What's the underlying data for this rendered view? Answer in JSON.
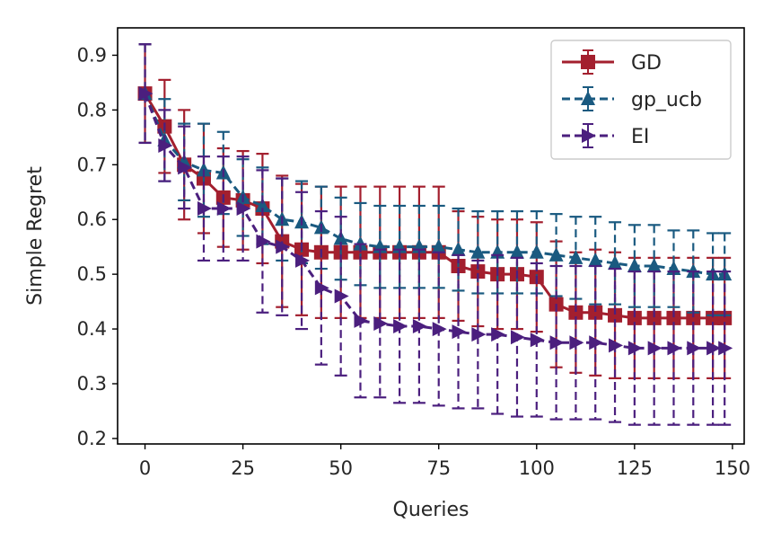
{
  "chart_data": {
    "type": "line",
    "xlabel": "Queries",
    "ylabel": "Simple Regret",
    "xlim": [
      -7,
      153
    ],
    "ylim": [
      0.19,
      0.95
    ],
    "xticks": [
      0,
      25,
      50,
      75,
      100,
      125,
      150
    ],
    "yticks": [
      0.2,
      0.3,
      0.4,
      0.5,
      0.6,
      0.7,
      0.8,
      0.9
    ],
    "grid": false,
    "legend_position": "top-right",
    "series": [
      {
        "name": "GD",
        "color": "#a31f2e",
        "marker": "square",
        "linestyle": "solid",
        "x": [
          0,
          5,
          10,
          15,
          20,
          25,
          30,
          35,
          40,
          45,
          50,
          55,
          60,
          65,
          70,
          75,
          80,
          85,
          90,
          95,
          100,
          105,
          110,
          115,
          120,
          125,
          130,
          135,
          140,
          145,
          148
        ],
        "y": [
          0.83,
          0.77,
          0.7,
          0.675,
          0.64,
          0.635,
          0.62,
          0.56,
          0.545,
          0.54,
          0.54,
          0.54,
          0.54,
          0.54,
          0.54,
          0.54,
          0.515,
          0.505,
          0.5,
          0.5,
          0.495,
          0.445,
          0.43,
          0.43,
          0.425,
          0.42,
          0.42,
          0.42,
          0.42,
          0.42,
          0.42
        ],
        "err": [
          0.09,
          0.085,
          0.1,
          0.1,
          0.09,
          0.09,
          0.1,
          0.12,
          0.12,
          0.12,
          0.12,
          0.12,
          0.12,
          0.12,
          0.12,
          0.12,
          0.1,
          0.1,
          0.1,
          0.1,
          0.1,
          0.115,
          0.11,
          0.115,
          0.115,
          0.11,
          0.11,
          0.11,
          0.11,
          0.11,
          0.11
        ]
      },
      {
        "name": "gp_ucb",
        "color": "#1a5a80",
        "marker": "triangle-up",
        "linestyle": "dashed",
        "x": [
          0,
          5,
          10,
          15,
          20,
          25,
          30,
          35,
          40,
          45,
          50,
          55,
          60,
          65,
          70,
          75,
          80,
          85,
          90,
          95,
          100,
          105,
          110,
          115,
          120,
          125,
          130,
          135,
          140,
          145,
          148
        ],
        "y": [
          0.83,
          0.745,
          0.705,
          0.69,
          0.685,
          0.64,
          0.625,
          0.6,
          0.595,
          0.585,
          0.565,
          0.555,
          0.55,
          0.55,
          0.55,
          0.55,
          0.545,
          0.54,
          0.54,
          0.54,
          0.54,
          0.535,
          0.53,
          0.525,
          0.52,
          0.515,
          0.515,
          0.51,
          0.505,
          0.5,
          0.5
        ],
        "err": [
          0.09,
          0.075,
          0.07,
          0.085,
          0.075,
          0.07,
          0.07,
          0.075,
          0.075,
          0.075,
          0.075,
          0.075,
          0.075,
          0.075,
          0.075,
          0.075,
          0.075,
          0.075,
          0.075,
          0.075,
          0.075,
          0.075,
          0.075,
          0.08,
          0.075,
          0.075,
          0.075,
          0.07,
          0.075,
          0.075,
          0.075
        ]
      },
      {
        "name": "EI",
        "color": "#4b1f7e",
        "marker": "triangle-right",
        "linestyle": "dashed",
        "x": [
          0,
          5,
          10,
          15,
          20,
          25,
          30,
          35,
          40,
          45,
          50,
          55,
          60,
          65,
          70,
          75,
          80,
          85,
          90,
          95,
          100,
          105,
          110,
          115,
          120,
          125,
          130,
          135,
          140,
          145,
          148
        ],
        "y": [
          0.83,
          0.735,
          0.695,
          0.62,
          0.62,
          0.62,
          0.56,
          0.55,
          0.525,
          0.475,
          0.46,
          0.415,
          0.41,
          0.405,
          0.405,
          0.4,
          0.395,
          0.39,
          0.39,
          0.385,
          0.38,
          0.375,
          0.375,
          0.375,
          0.37,
          0.365,
          0.365,
          0.365,
          0.365,
          0.365,
          0.365
        ],
        "err": [
          0.09,
          0.065,
          0.075,
          0.095,
          0.095,
          0.095,
          0.13,
          0.125,
          0.125,
          0.14,
          0.145,
          0.14,
          0.135,
          0.14,
          0.14,
          0.14,
          0.14,
          0.135,
          0.145,
          0.145,
          0.14,
          0.14,
          0.14,
          0.14,
          0.14,
          0.14,
          0.14,
          0.14,
          0.14,
          0.14,
          0.14
        ]
      }
    ]
  }
}
